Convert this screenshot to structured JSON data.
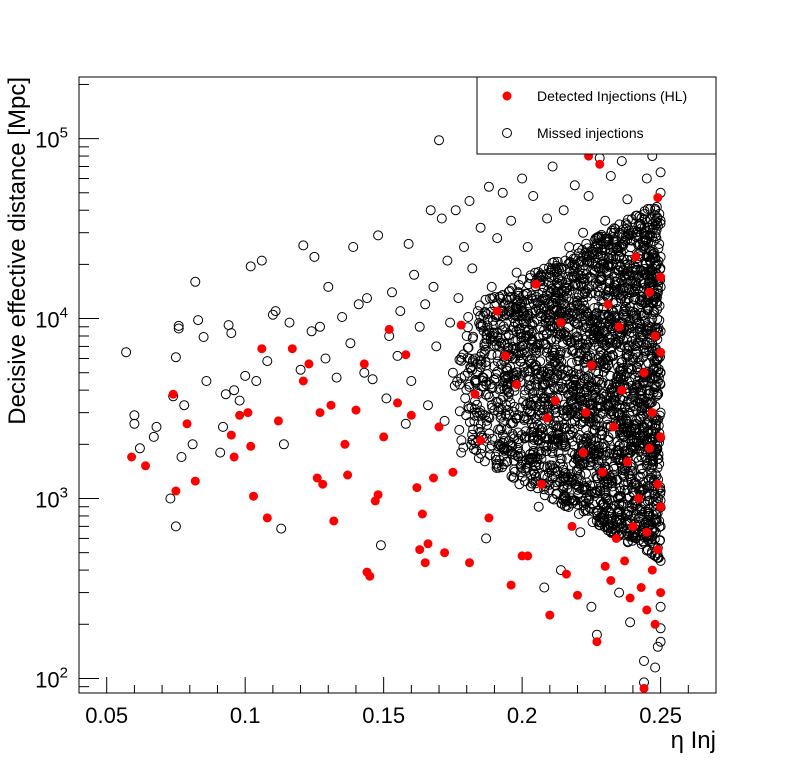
{
  "chart_data": {
    "type": "scatter",
    "xlabel": "η Inj",
    "ylabel": "Decisive effective distance [Mpc]",
    "xlim": [
      0.04,
      0.27
    ],
    "ylim": [
      83,
      220000
    ],
    "y_scale": "log",
    "x_ticks": [
      {
        "value": 0.05,
        "label": "0.05"
      },
      {
        "value": 0.1,
        "label": "0.1"
      },
      {
        "value": 0.15,
        "label": "0.15"
      },
      {
        "value": 0.2,
        "label": "0.2"
      },
      {
        "value": 0.25,
        "label": "0.25"
      }
    ],
    "y_ticks": [
      {
        "value": 100,
        "base": "10",
        "exp": "2"
      },
      {
        "value": 1000,
        "base": "10",
        "exp": "3"
      },
      {
        "value": 10000,
        "base": "10",
        "exp": "4"
      },
      {
        "value": 100000,
        "base": "10",
        "exp": "5"
      }
    ],
    "grid": false,
    "legend_position": "top-right",
    "series": [
      {
        "name": "Detected Injections (HL)",
        "marker": "filled-circle",
        "color": "#ff0000",
        "points": [
          [
            0.059,
            1700
          ],
          [
            0.064,
            1520
          ],
          [
            0.074,
            3800
          ],
          [
            0.075,
            1100
          ],
          [
            0.079,
            2600
          ],
          [
            0.082,
            1250
          ],
          [
            0.095,
            2250
          ],
          [
            0.096,
            1700
          ],
          [
            0.098,
            2900
          ],
          [
            0.101,
            3000
          ],
          [
            0.102,
            1950
          ],
          [
            0.103,
            1030
          ],
          [
            0.106,
            6800
          ],
          [
            0.108,
            780
          ],
          [
            0.112,
            2700
          ],
          [
            0.117,
            6800
          ],
          [
            0.121,
            4500
          ],
          [
            0.123,
            5600
          ],
          [
            0.126,
            1300
          ],
          [
            0.127,
            3000
          ],
          [
            0.128,
            1200
          ],
          [
            0.131,
            3300
          ],
          [
            0.132,
            750
          ],
          [
            0.136,
            2000
          ],
          [
            0.137,
            1350
          ],
          [
            0.14,
            3100
          ],
          [
            0.143,
            5600
          ],
          [
            0.144,
            390
          ],
          [
            0.145,
            370
          ],
          [
            0.147,
            970
          ],
          [
            0.148,
            1050
          ],
          [
            0.15,
            2200
          ],
          [
            0.152,
            8700
          ],
          [
            0.155,
            3400
          ],
          [
            0.158,
            6300
          ],
          [
            0.16,
            2900
          ],
          [
            0.162,
            1150
          ],
          [
            0.163,
            520
          ],
          [
            0.164,
            820
          ],
          [
            0.165,
            440
          ],
          [
            0.166,
            560
          ],
          [
            0.168,
            1300
          ],
          [
            0.17,
            2500
          ],
          [
            0.172,
            500
          ],
          [
            0.175,
            1400
          ],
          [
            0.178,
            9200
          ],
          [
            0.181,
            440
          ],
          [
            0.183,
            3800
          ],
          [
            0.185,
            2100
          ],
          [
            0.188,
            780
          ],
          [
            0.191,
            11000
          ],
          [
            0.194,
            6200
          ],
          [
            0.196,
            330
          ],
          [
            0.198,
            4300
          ],
          [
            0.2,
            480
          ],
          [
            0.202,
            480
          ],
          [
            0.205,
            15500
          ],
          [
            0.207,
            1200
          ],
          [
            0.209,
            2800
          ],
          [
            0.21,
            225
          ],
          [
            0.212,
            3500
          ],
          [
            0.214,
            9500
          ],
          [
            0.216,
            380
          ],
          [
            0.218,
            700
          ],
          [
            0.22,
            290
          ],
          [
            0.222,
            1800
          ],
          [
            0.223,
            3000
          ],
          [
            0.224,
            80000
          ],
          [
            0.225,
            5500
          ],
          [
            0.227,
            160
          ],
          [
            0.228,
            72000
          ],
          [
            0.229,
            1400
          ],
          [
            0.23,
            420
          ],
          [
            0.231,
            12000
          ],
          [
            0.232,
            350
          ],
          [
            0.233,
            2500
          ],
          [
            0.234,
            600
          ],
          [
            0.235,
            9000
          ],
          [
            0.236,
            4000
          ],
          [
            0.237,
            450
          ],
          [
            0.238,
            1600
          ],
          [
            0.239,
            280
          ],
          [
            0.24,
            700
          ],
          [
            0.241,
            22000
          ],
          [
            0.242,
            1000
          ],
          [
            0.243,
            320
          ],
          [
            0.244,
            5000
          ],
          [
            0.244,
            88
          ],
          [
            0.245,
            240
          ],
          [
            0.245,
            650
          ],
          [
            0.246,
            14000
          ],
          [
            0.246,
            1900
          ],
          [
            0.247,
            400
          ],
          [
            0.247,
            3000
          ],
          [
            0.248,
            200
          ],
          [
            0.248,
            8000
          ],
          [
            0.249,
            520
          ],
          [
            0.249,
            1200
          ],
          [
            0.249,
            47000
          ],
          [
            0.25,
            300
          ],
          [
            0.25,
            2200
          ],
          [
            0.25,
            6500
          ],
          [
            0.25,
            900
          ],
          [
            0.25,
            17000
          ]
        ]
      },
      {
        "name": "Missed injections",
        "marker": "open-circle",
        "color": "#000000",
        "points": [
          [
            0.057,
            6500
          ],
          [
            0.06,
            2900
          ],
          [
            0.06,
            2600
          ],
          [
            0.062,
            1900
          ],
          [
            0.067,
            2200
          ],
          [
            0.068,
            2500
          ],
          [
            0.073,
            1000
          ],
          [
            0.074,
            3700
          ],
          [
            0.075,
            6100
          ],
          [
            0.075,
            700
          ],
          [
            0.076,
            9100
          ],
          [
            0.076,
            8800
          ],
          [
            0.077,
            1700
          ],
          [
            0.078,
            3300
          ],
          [
            0.081,
            2000
          ],
          [
            0.082,
            16000
          ],
          [
            0.083,
            9800
          ],
          [
            0.085,
            7900
          ],
          [
            0.086,
            4500
          ],
          [
            0.091,
            1800
          ],
          [
            0.092,
            2500
          ],
          [
            0.093,
            3800
          ],
          [
            0.094,
            9200
          ],
          [
            0.095,
            8300
          ],
          [
            0.096,
            4000
          ],
          [
            0.098,
            3500
          ],
          [
            0.1,
            4800
          ],
          [
            0.102,
            19500
          ],
          [
            0.104,
            4500
          ],
          [
            0.106,
            21000
          ],
          [
            0.108,
            5800
          ],
          [
            0.11,
            10500
          ],
          [
            0.111,
            11000
          ],
          [
            0.113,
            680
          ],
          [
            0.114,
            2000
          ],
          [
            0.116,
            9500
          ],
          [
            0.12,
            5200
          ],
          [
            0.121,
            25500
          ],
          [
            0.124,
            8500
          ],
          [
            0.125,
            22000
          ],
          [
            0.127,
            9000
          ],
          [
            0.129,
            6000
          ],
          [
            0.13,
            15000
          ],
          [
            0.133,
            4700
          ],
          [
            0.135,
            10200
          ],
          [
            0.138,
            7300
          ],
          [
            0.139,
            25000
          ],
          [
            0.141,
            12000
          ],
          [
            0.143,
            5000
          ],
          [
            0.144,
            13000
          ],
          [
            0.146,
            4600
          ],
          [
            0.148,
            29000
          ],
          [
            0.149,
            550
          ],
          [
            0.151,
            3600
          ],
          [
            0.152,
            8000
          ],
          [
            0.153,
            14000
          ],
          [
            0.155,
            6200
          ],
          [
            0.156,
            11000
          ],
          [
            0.158,
            2600
          ],
          [
            0.159,
            26000
          ],
          [
            0.16,
            4500
          ],
          [
            0.161,
            17500
          ],
          [
            0.163,
            9000
          ],
          [
            0.165,
            12000
          ],
          [
            0.166,
            3300
          ],
          [
            0.167,
            40000
          ],
          [
            0.168,
            15000
          ],
          [
            0.169,
            7000
          ],
          [
            0.17,
            98000
          ],
          [
            0.171,
            36000
          ],
          [
            0.172,
            2700
          ],
          [
            0.173,
            21000
          ],
          [
            0.174,
            9500
          ],
          [
            0.175,
            5000
          ],
          [
            0.176,
            40000
          ],
          [
            0.177,
            13000
          ],
          [
            0.178,
            1800
          ],
          [
            0.179,
            25000
          ],
          [
            0.18,
            8000
          ],
          [
            0.181,
            45000
          ],
          [
            0.182,
            19000
          ],
          [
            0.183,
            6000
          ],
          [
            0.184,
            11000
          ],
          [
            0.185,
            32000
          ],
          [
            0.186,
            4200
          ],
          [
            0.187,
            600
          ],
          [
            0.188,
            54000
          ],
          [
            0.189,
            15000
          ],
          [
            0.19,
            7500
          ],
          [
            0.191,
            28000
          ],
          [
            0.192,
            2400
          ],
          [
            0.193,
            50000
          ],
          [
            0.194,
            12000
          ],
          [
            0.195,
            4400
          ],
          [
            0.196,
            35000
          ],
          [
            0.197,
            9000
          ],
          [
            0.198,
            18000
          ],
          [
            0.199,
            1200
          ],
          [
            0.2,
            60000
          ],
          [
            0.201,
            6500
          ],
          [
            0.202,
            25000
          ],
          [
            0.203,
            3300
          ],
          [
            0.204,
            48000
          ],
          [
            0.205,
            11000
          ],
          [
            0.206,
            900
          ],
          [
            0.207,
            17000
          ],
          [
            0.208,
            320
          ],
          [
            0.209,
            36000
          ],
          [
            0.21,
            5200
          ],
          [
            0.211,
            70000
          ],
          [
            0.212,
            14000
          ],
          [
            0.213,
            2100
          ],
          [
            0.214,
            400
          ],
          [
            0.215,
            40000
          ],
          [
            0.216,
            8000
          ],
          [
            0.217,
            25000
          ],
          [
            0.218,
            3500
          ],
          [
            0.219,
            55000
          ],
          [
            0.22,
            12000
          ],
          [
            0.221,
            650
          ],
          [
            0.222,
            30000
          ],
          [
            0.223,
            6500
          ],
          [
            0.224,
            48000
          ],
          [
            0.225,
            250
          ],
          [
            0.226,
            18000
          ],
          [
            0.227,
            175
          ],
          [
            0.228,
            78000
          ],
          [
            0.229,
            4400
          ],
          [
            0.23,
            35000
          ],
          [
            0.231,
            9000
          ],
          [
            0.232,
            62000
          ],
          [
            0.233,
            1500
          ],
          [
            0.234,
            20000
          ],
          [
            0.235,
            300
          ],
          [
            0.236,
            75000
          ],
          [
            0.237,
            7000
          ],
          [
            0.238,
            46000
          ],
          [
            0.239,
            205
          ],
          [
            0.24,
            30000
          ],
          [
            0.241,
            2600
          ],
          [
            0.242,
            90000
          ],
          [
            0.243,
            12000
          ],
          [
            0.244,
            125
          ],
          [
            0.244,
            95
          ],
          [
            0.245,
            60000
          ],
          [
            0.245,
            4000
          ],
          [
            0.246,
            24000
          ],
          [
            0.246,
            800
          ],
          [
            0.247,
            80000
          ],
          [
            0.247,
            10000
          ],
          [
            0.248,
            1800
          ],
          [
            0.248,
            40000
          ],
          [
            0.248,
            115
          ],
          [
            0.249,
            6000
          ],
          [
            0.249,
            150
          ],
          [
            0.249,
            95000
          ],
          [
            0.25,
            15000
          ],
          [
            0.25,
            250
          ],
          [
            0.25,
            3000
          ],
          [
            0.25,
            160
          ],
          [
            0.25,
            50000
          ],
          [
            0.25,
            700
          ],
          [
            0.25,
            22000
          ],
          [
            0.25,
            1100
          ],
          [
            0.25,
            8500
          ],
          [
            0.25,
            450
          ],
          [
            0.25,
            35000
          ],
          [
            0.25,
            190
          ],
          [
            0.25,
            5000
          ],
          [
            0.25,
            65000
          ]
        ]
      }
    ],
    "dense_region": {
      "series": "Missed injections",
      "x_range": [
        0.175,
        0.25
      ],
      "y_range": [
        450,
        45000
      ],
      "note_density": "high"
    }
  }
}
